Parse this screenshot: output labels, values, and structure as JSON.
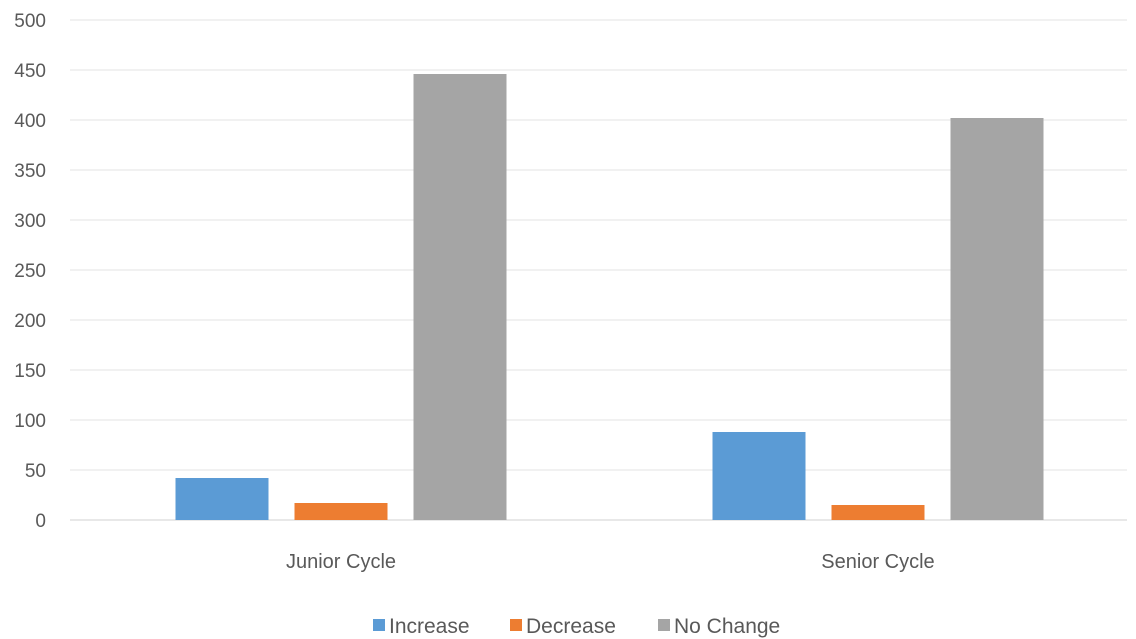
{
  "chart_data": {
    "type": "bar",
    "title": "",
    "xlabel": "",
    "ylabel": "",
    "categories": [
      "Junior Cycle",
      "Senior Cycle"
    ],
    "ylim": [
      0,
      500
    ],
    "yticks": [
      0,
      50,
      100,
      150,
      200,
      250,
      300,
      350,
      400,
      450,
      500
    ],
    "grid": true,
    "legend_position": "bottom",
    "series": [
      {
        "name": "Increase",
        "color": "#5b9bd5",
        "values": [
          42,
          88
        ]
      },
      {
        "name": "Decrease",
        "color": "#ed7d31",
        "values": [
          17,
          15
        ]
      },
      {
        "name": "No Change",
        "color": "#a5a5a5",
        "values": [
          446,
          402
        ]
      }
    ]
  }
}
